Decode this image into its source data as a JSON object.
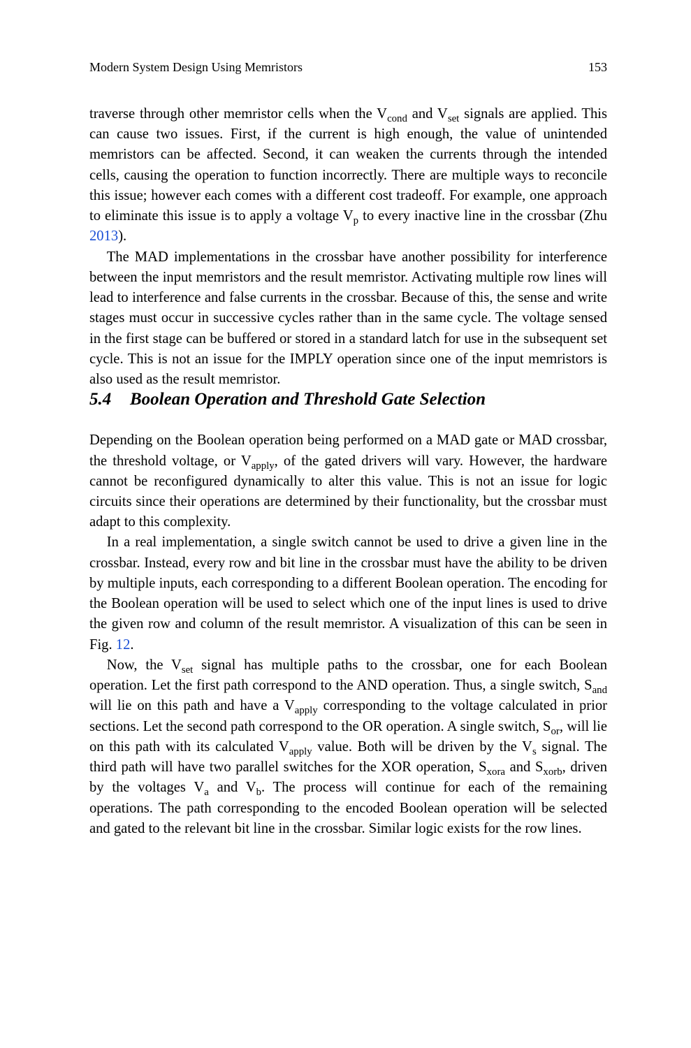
{
  "header": {
    "running_title": "Modern System Design Using Memristors",
    "page_number": "153"
  },
  "body": {
    "p1_a": "traverse through other memristor cells when the V",
    "p1_sub1": "cond",
    "p1_b": " and V",
    "p1_sub2": "set",
    "p1_c": " signals are applied. This can cause two issues. First, if the current is high enough, the value of unintended memristors can be affected. Second, it can weaken the currents through the intended cells, causing the operation to function incorrectly. There are multiple ways to reconcile this issue; however each comes with a different cost tradeoff. For example, one approach to eliminate this issue is to apply a voltage V",
    "p1_sub3": "p",
    "p1_d": " to every inactive line in the crossbar (Zhu ",
    "p1_link": "2013",
    "p1_e": ").",
    "p2": "The MAD implementations in the crossbar have another possibility for interference between the input memristors and the result memristor. Activating multiple row lines will lead to interference and false currents in the crossbar. Because of this, the sense and write stages must occur in successive cycles rather than in the same cycle. The voltage sensed in the first stage can be buffered or stored in a standard latch for use in the subsequent set cycle. This is not an issue for the IMPLY operation since one of the input memristors is also used as the result memristor.",
    "section": {
      "number": "5.4",
      "title": "Boolean Operation and Threshold Gate Selection"
    },
    "p3_a": "Depending on the Boolean operation being performed on a MAD gate or MAD crossbar, the threshold voltage, or V",
    "p3_sub1": "apply",
    "p3_b": ", of the gated drivers will vary. However, the hardware cannot be reconfigured dynamically to alter this value. This is not an issue for logic circuits since their operations are determined by their functionality, but the crossbar must adapt to this complexity.",
    "p4_a": "In a real implementation, a single switch cannot be used to drive a given line in the crossbar. Instead, every row and bit line in the crossbar must have the ability to be driven by multiple inputs, each corresponding to a different Boolean operation. The encoding for the Boolean operation will be used to select which one of the input lines is used to drive the given row and column of the result memristor. A visualization of this can be seen in Fig. ",
    "p4_link": "12",
    "p4_b": ".",
    "p5_a": "Now, the V",
    "p5_sub1": "set",
    "p5_b": " signal has multiple paths to the crossbar, one for each Boolean operation. Let the first path correspond to the AND operation. Thus, a single switch, S",
    "p5_sub2": "and",
    "p5_c": " will lie on this path and have a V",
    "p5_sub3": "apply",
    "p5_d": " corresponding to the voltage calculated in prior sections. Let the second path correspond to the OR operation. A single switch, S",
    "p5_sub4": "or",
    "p5_e": ", will lie on this path with its calculated V",
    "p5_sub5": "apply",
    "p5_f": " value. Both will be driven by the V",
    "p5_sub6": "s",
    "p5_g": " signal. The third path will have two parallel switches for the XOR operation, S",
    "p5_sub7": "xora",
    "p5_h": " and S",
    "p5_sub8": "xorb",
    "p5_i": ", driven by the voltages V",
    "p5_sub9": "a",
    "p5_j": " and V",
    "p5_sub10": "b",
    "p5_k": ". The process will continue for each of the remaining operations. The path corresponding to the encoded Boolean operation will be selected and gated to the relevant bit line in the crossbar. Similar logic exists for the row lines."
  }
}
